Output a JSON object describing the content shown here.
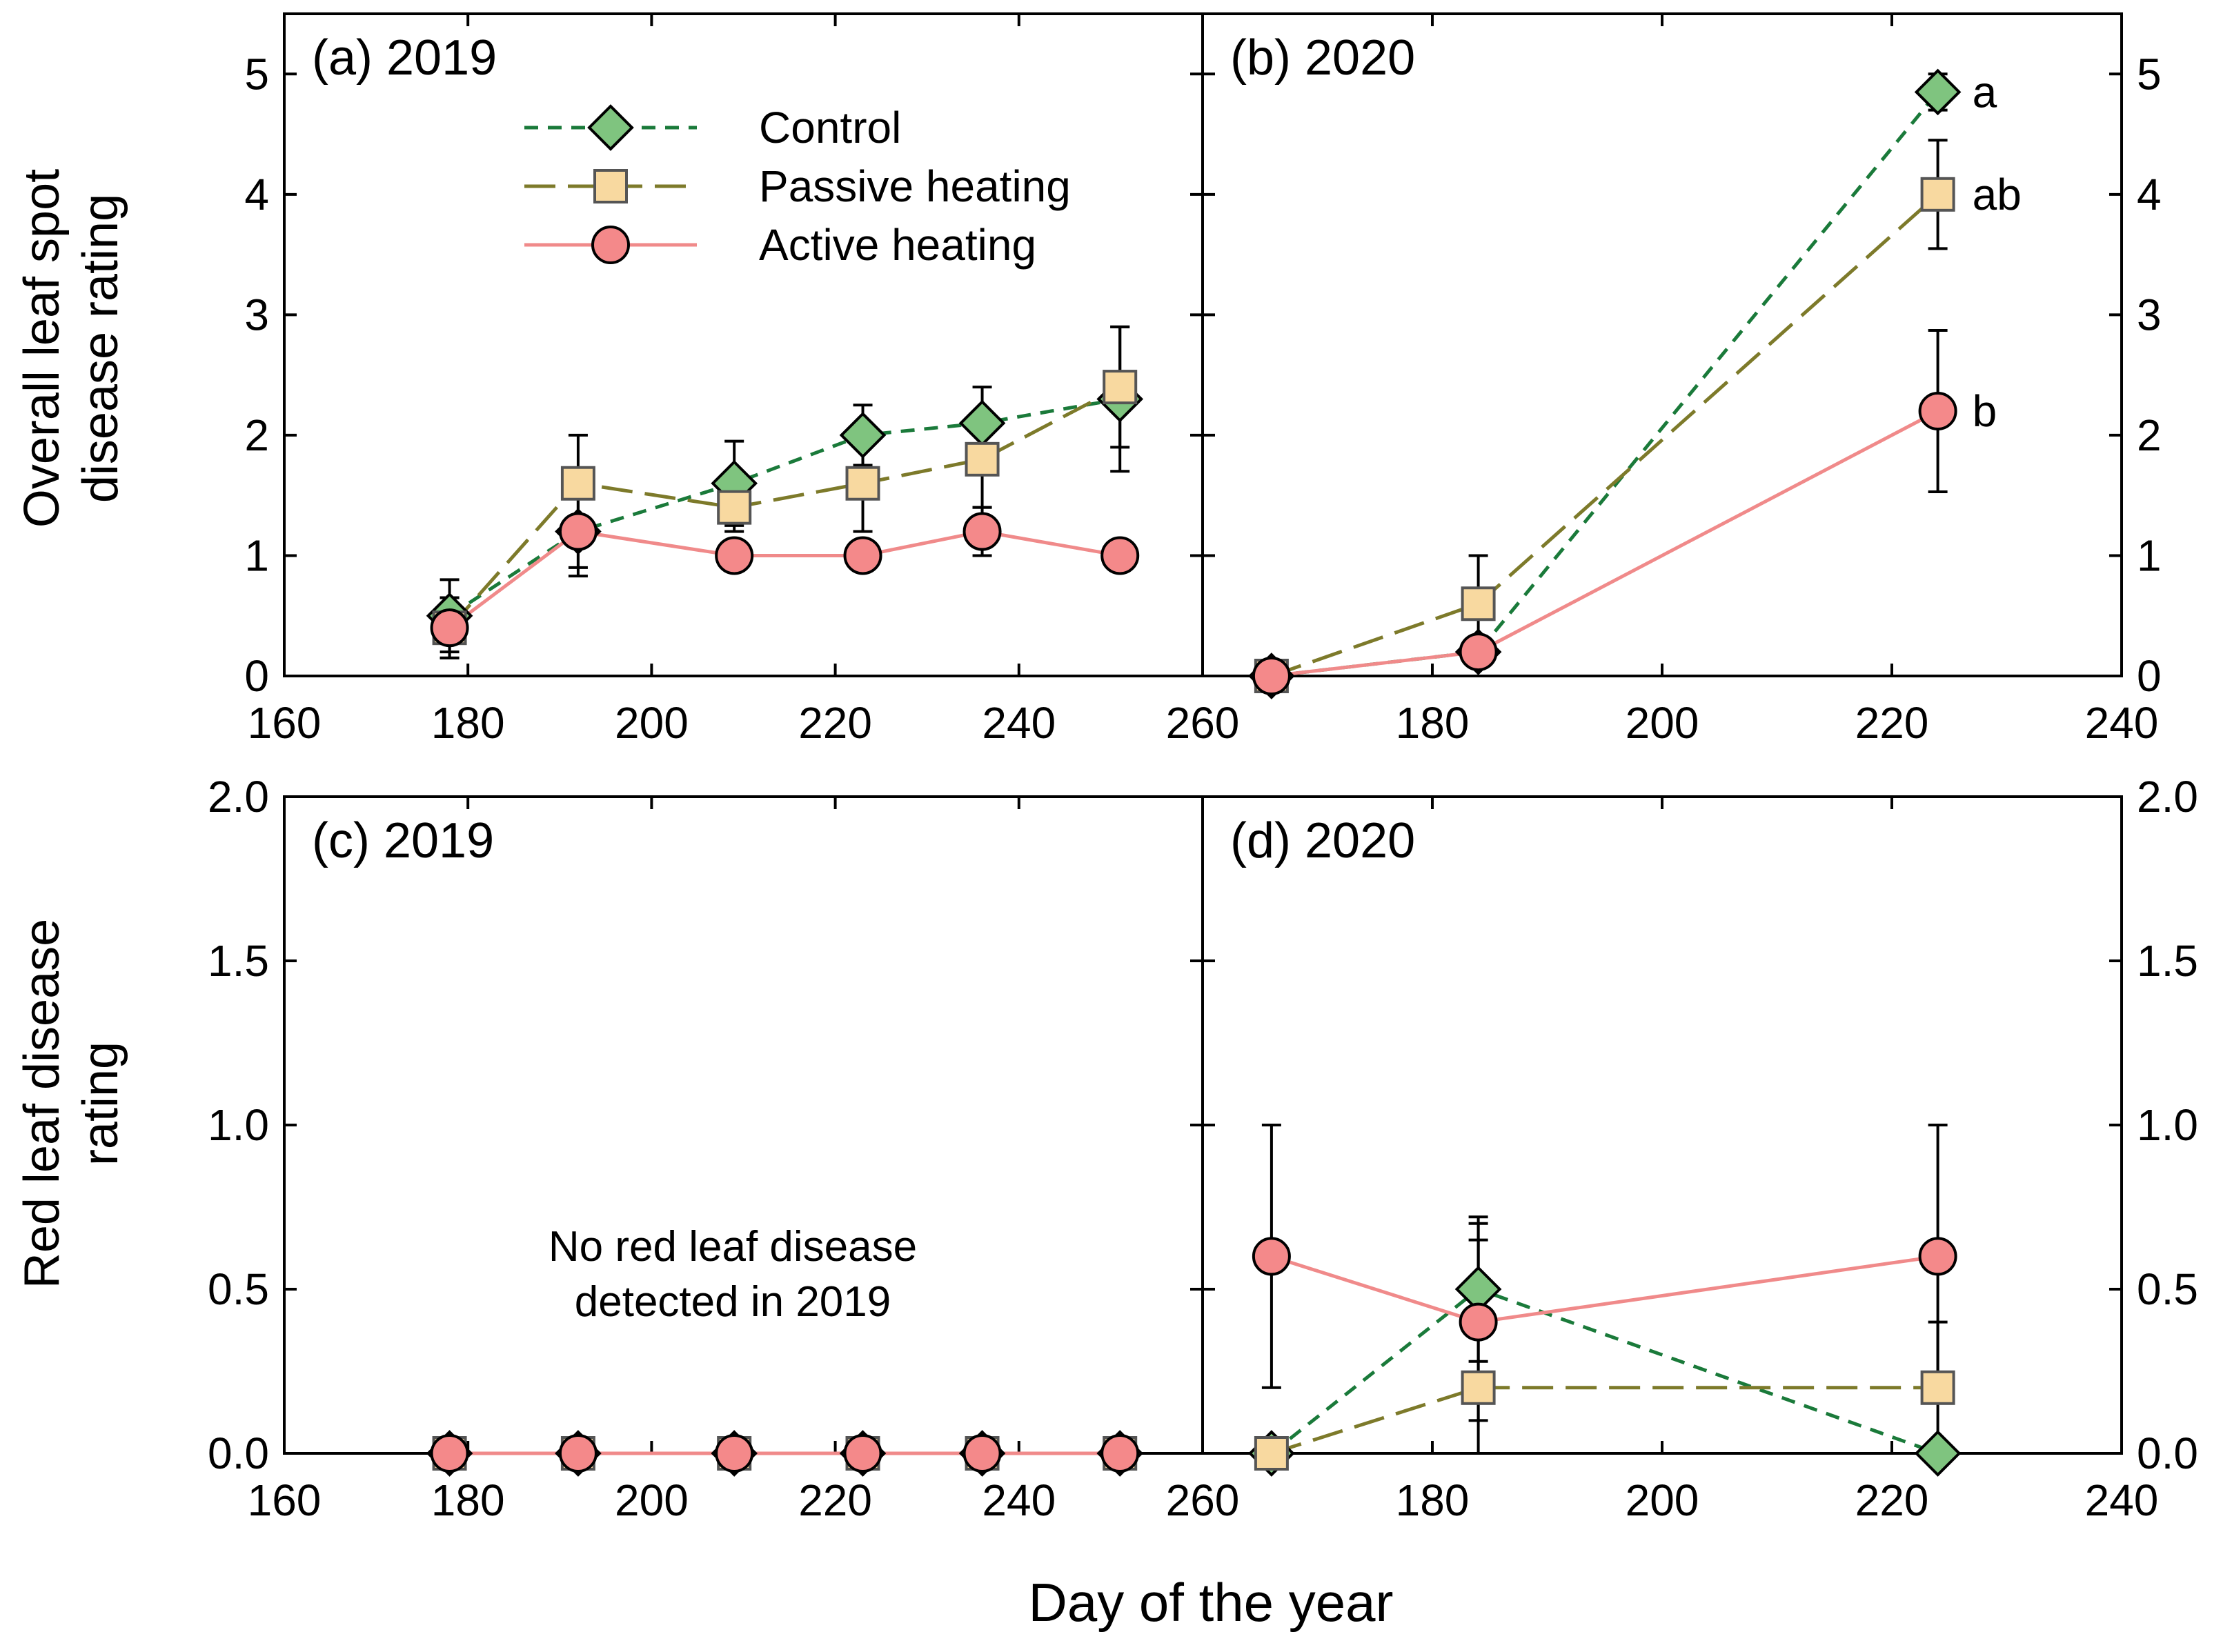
{
  "figure": {
    "ylabel_top_line1": "Overall leaf spot",
    "ylabel_top_line2": "disease rating",
    "ylabel_bottom_line1": "Red leaf disease",
    "ylabel_bottom_line2": "rating",
    "xlabel": "Day of the year",
    "no_disease_line1": "No red leaf disease",
    "no_disease_line2": "detected in 2019"
  },
  "legend": {
    "control": "Control",
    "passive": "Passive heating",
    "active": "Active heating"
  },
  "colors": {
    "control_fill": "#7fc47f",
    "control_line": "#1a7a3a",
    "passive_fill": "#f8d9a0",
    "passive_line": "#7d7a2a",
    "active_fill": "#f4898a",
    "active_line": "#f08a8a"
  },
  "chart_data": [
    {
      "panel": "a",
      "title": "(a) 2019",
      "type": "line",
      "xlim": [
        160,
        260
      ],
      "ylim": [
        0,
        5.5
      ],
      "xticks": [
        "160",
        "180",
        "200",
        "220",
        "240",
        "260"
      ],
      "yticks": [
        "0",
        "1",
        "2",
        "3",
        "4",
        "5"
      ],
      "x": [
        178,
        192,
        209,
        223,
        236,
        251
      ],
      "series": [
        {
          "name": "Control",
          "key": "control",
          "values": [
            0.5,
            1.2,
            1.6,
            2.0,
            2.1,
            2.3
          ],
          "errors": [
            0.3,
            0.3,
            0.35,
            0.25,
            0.3,
            0.6
          ]
        },
        {
          "name": "Passive heating",
          "key": "passive",
          "values": [
            0.4,
            1.6,
            1.4,
            1.6,
            1.8,
            2.4
          ],
          "errors": [
            0.25,
            0.4,
            0.2,
            0.4,
            0.4,
            0.5
          ]
        },
        {
          "name": "Active heating",
          "key": "active",
          "values": [
            0.4,
            1.2,
            1.0,
            1.0,
            1.2,
            1.0
          ],
          "errors": [
            0.25,
            0.37,
            0,
            0,
            0.2,
            0
          ]
        }
      ],
      "annotations": []
    },
    {
      "panel": "b",
      "title": "(b) 2020",
      "type": "line",
      "xlim": [
        160,
        240
      ],
      "ylim": [
        0,
        5.5
      ],
      "xticks": [
        "180",
        "200",
        "220",
        "240"
      ],
      "yticks": [
        "0",
        "1",
        "2",
        "3",
        "4",
        "5"
      ],
      "x": [
        166,
        184,
        224
      ],
      "series": [
        {
          "name": "Control",
          "key": "control",
          "values": [
            0,
            0.2,
            4.85
          ],
          "errors": [
            0,
            0,
            0.15
          ]
        },
        {
          "name": "Passive heating",
          "key": "passive",
          "values": [
            0,
            0.6,
            4.0
          ],
          "errors": [
            0,
            0.4,
            0.45
          ]
        },
        {
          "name": "Active heating",
          "key": "active",
          "values": [
            0,
            0.2,
            2.2
          ],
          "errors": [
            0,
            0,
            0.67
          ]
        }
      ],
      "annotations": [
        {
          "text": "a",
          "x": 224,
          "y": 4.85
        },
        {
          "text": "ab",
          "x": 224,
          "y": 4.0
        },
        {
          "text": "b",
          "x": 224,
          "y": 2.2
        }
      ]
    },
    {
      "panel": "c",
      "title": "(c) 2019",
      "type": "line",
      "xlim": [
        160,
        260
      ],
      "ylim": [
        0,
        2.0
      ],
      "xticks": [
        "160",
        "180",
        "200",
        "220",
        "240",
        "260"
      ],
      "yticks": [
        "0.0",
        "0.5",
        "1.0",
        "1.5",
        "2.0"
      ],
      "x": [
        178,
        192,
        209,
        223,
        236,
        251
      ],
      "series": [
        {
          "name": "Control",
          "key": "control",
          "values": [
            0,
            0,
            0,
            0,
            0,
            0
          ],
          "errors": [
            0,
            0,
            0,
            0,
            0,
            0
          ]
        },
        {
          "name": "Passive heating",
          "key": "passive",
          "values": [
            0,
            0,
            0,
            0,
            0,
            0
          ],
          "errors": [
            0,
            0,
            0,
            0,
            0,
            0
          ]
        },
        {
          "name": "Active heating",
          "key": "active",
          "values": [
            0,
            0,
            0,
            0,
            0,
            0
          ],
          "errors": [
            0,
            0,
            0,
            0,
            0,
            0
          ]
        }
      ],
      "annotations": []
    },
    {
      "panel": "d",
      "title": "(d) 2020",
      "type": "line",
      "xlim": [
        160,
        240
      ],
      "ylim": [
        0,
        2.0
      ],
      "xticks": [
        "180",
        "200",
        "220",
        "240"
      ],
      "yticks": [
        "0.0",
        "0.5",
        "1.0",
        "1.5",
        "2.0"
      ],
      "x": [
        166,
        184,
        224
      ],
      "series": [
        {
          "name": "Control",
          "key": "control",
          "values": [
            0,
            0.5,
            0
          ],
          "errors": [
            0,
            0.22,
            0
          ]
        },
        {
          "name": "Passive heating",
          "key": "passive",
          "values": [
            0,
            0.2,
            0.2
          ],
          "errors": [
            0,
            0.45,
            0.2
          ]
        },
        {
          "name": "Active heating",
          "key": "active",
          "values": [
            0.6,
            0.4,
            0.6
          ],
          "errors": [
            0.4,
            0.3,
            0.4
          ]
        }
      ],
      "annotations": []
    }
  ]
}
